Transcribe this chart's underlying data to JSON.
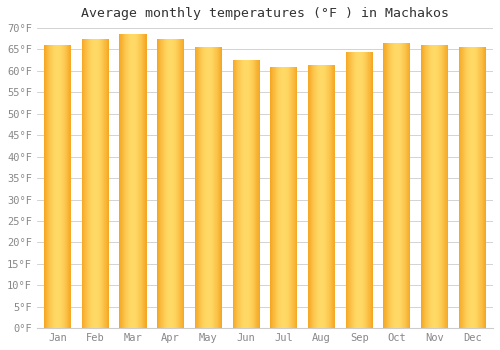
{
  "title": "Average monthly temperatures (°F ) in Machakos",
  "months": [
    "Jan",
    "Feb",
    "Mar",
    "Apr",
    "May",
    "Jun",
    "Jul",
    "Aug",
    "Sep",
    "Oct",
    "Nov",
    "Dec"
  ],
  "values": [
    66.0,
    67.5,
    68.5,
    67.5,
    65.5,
    62.5,
    61.0,
    61.5,
    64.5,
    66.5,
    66.0,
    65.5
  ],
  "bar_color_dark": "#F5A623",
  "bar_color_light": "#FFD966",
  "ylim": [
    0,
    70
  ],
  "ytick_step": 5,
  "background_color": "#FFFFFF",
  "grid_color": "#cccccc",
  "title_fontsize": 9.5,
  "tick_fontsize": 7.5,
  "bar_width": 0.72
}
